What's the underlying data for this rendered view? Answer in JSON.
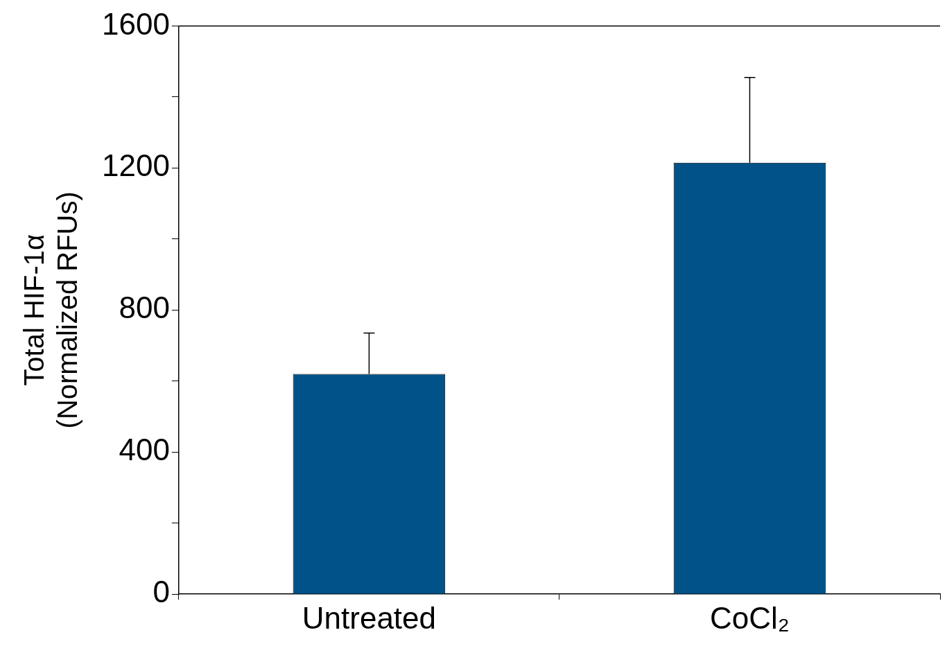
{
  "chart_data": {
    "type": "bar",
    "ylabel": "Total HIF-1α\n(Normalized RFUs)",
    "categories": [
      "Untreated",
      "CoCl₂"
    ],
    "values": [
      620,
      1215
    ],
    "errors": [
      [
        620,
        735
      ],
      [
        1215,
        1455
      ]
    ],
    "color": "#005288",
    "ylim": [
      0,
      1600
    ],
    "yticks": [
      0,
      {
        "value": 200,
        "label": null
      },
      400,
      {
        "value": 600,
        "label": null
      },
      800,
      {
        "value": 1000,
        "label": null
      },
      1200,
      {
        "value": 1400,
        "label": null
      },
      1600
    ],
    "grid": false,
    "legend": false
  }
}
